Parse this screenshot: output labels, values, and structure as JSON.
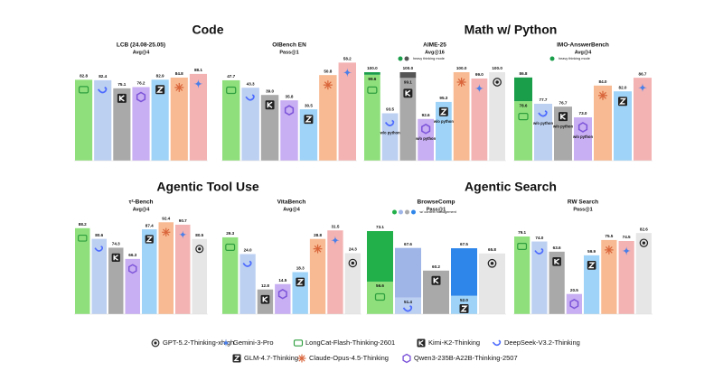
{
  "sections": [
    "Code",
    "Math w/ Python",
    "Agentic Tool Use",
    "Agentic Search"
  ],
  "legend": [
    {
      "name": "GPT-5.2-Thinking-xhigh",
      "color": "#e6e6e6"
    },
    {
      "name": "Gemini-3-Pro",
      "color": "#f4b3b3"
    },
    {
      "name": "LongCat-Flash-Thinking-2601",
      "color": "#8fe07c"
    },
    {
      "name": "Kimi-K2-Thinking",
      "color": "#a9a9a9"
    },
    {
      "name": "DeepSeek-V3.2-Thinking",
      "color": "#bcd0f2"
    },
    {
      "name": "GLM-4.7-Thinking",
      "color": "#9fd3f7"
    },
    {
      "name": "Claude-Opus-4.5-Thinking",
      "color": "#f8ba92"
    },
    {
      "name": "Qwen3-235B-A22B-Thinking-2507",
      "color": "#c8aef2"
    }
  ],
  "chart_data": [
    {
      "type": "bar",
      "title": "LCB (24.08-25.05)",
      "subtitle": "Avg@4",
      "categories": [
        "LongCat-Flash-Thinking-2601",
        "DeepSeek-V3.2-Thinking",
        "Kimi-K2-Thinking",
        "Qwen3-235B-A22B-Thinking-2507",
        "GLM-4.7-Thinking",
        "Claude-Opus-4.5-Thinking",
        "Gemini-3-Pro"
      ],
      "values": [
        82.8,
        82.4,
        75.1,
        76.2,
        82.9,
        84.8,
        88.1
      ],
      "value_labels": [
        "82.8",
        "82.4",
        "75.1",
        "76.2",
        "82.9",
        "84.8",
        "88.1"
      ],
      "ylim": [
        10,
        101
      ]
    },
    {
      "type": "bar",
      "title": "OIBench EN",
      "subtitle": "Pass@1",
      "categories": [
        "LongCat-Flash-Thinking-2601",
        "DeepSeek-V3.2-Thinking",
        "Kimi-K2-Thinking",
        "Qwen3-235B-A22B-Thinking-2507",
        "GLM-4.7-Thinking",
        "Claude-Opus-4.5-Thinking",
        "Gemini-3-Pro"
      ],
      "values": [
        47.7,
        43.3,
        39.0,
        35.8,
        30.5,
        50.8,
        58.2
      ],
      "value_labels": [
        "47.7",
        "43.3",
        "39.0",
        "35.8",
        "30.5",
        "50.8",
        "58.2"
      ],
      "ylim": [
        0,
        60
      ]
    },
    {
      "type": "bar",
      "title": "AIME-25",
      "subtitle": "Avg@16",
      "categories": [
        "LongCat-Flash-Thinking-2601",
        "DeepSeek-V3.2-Thinking",
        "Kimi-K2-Thinking",
        "Qwen3-235B-A22B-Thinking-2507",
        "GLM-4.7-Thinking",
        "Claude-Opus-4.5-Thinking",
        "Gemini-3-Pro",
        "GPT-5.2-Thinking-xhigh"
      ],
      "values": [
        99.6,
        93.5,
        99.1,
        92.6,
        95.3,
        100.0,
        99.0,
        100.0
      ],
      "value_labels": [
        "99.6",
        "93.5",
        "99.1",
        "92.6",
        "95.3",
        "100.0",
        "99.0",
        "100.0"
      ],
      "heavy_values": [
        100.0,
        null,
        100.0,
        null,
        null,
        null,
        null,
        null
      ],
      "heavy_value_labels": [
        "100.0",
        null,
        "100.0",
        null,
        null,
        null,
        null,
        null
      ],
      "heavy_colors": [
        "#1a9e4a",
        null,
        "#555555",
        null,
        null,
        null,
        null,
        null
      ],
      "notes": [
        null,
        "w/o python",
        null,
        "w/o python",
        "w/o python",
        null,
        null,
        null
      ],
      "legend_note": {
        "label": "heavy thinking mode",
        "colors": [
          "#1a9e4a",
          "#555555"
        ]
      },
      "ylim": [
        86,
        102
      ]
    },
    {
      "type": "bar",
      "title": "IMO-AnswerBench",
      "subtitle": "Avg@4",
      "categories": [
        "LongCat-Flash-Thinking-2601",
        "DeepSeek-V3.2-Thinking",
        "Kimi-K2-Thinking",
        "Qwen3-235B-A22B-Thinking-2507",
        "Claude-Opus-4.5-Thinking",
        "GLM-4.7-Thinking",
        "Gemini-3-Pro"
      ],
      "values": [
        78.6,
        77.7,
        76.7,
        73.0,
        84.0,
        82.0,
        86.7
      ],
      "value_labels": [
        "78.6",
        "77.7",
        "76.7",
        "73.0",
        "84.0",
        "82.0",
        "86.7"
      ],
      "heavy_values": [
        86.8,
        null,
        null,
        null,
        null,
        null,
        null
      ],
      "heavy_value_labels": [
        "86.8",
        null,
        null,
        null,
        null,
        null,
        null
      ],
      "heavy_colors": [
        "#1a9e4a",
        null,
        null,
        null,
        null,
        null,
        null
      ],
      "notes": [
        null,
        "w/o python",
        "w/o python",
        "w/o python",
        null,
        null,
        null
      ],
      "legend_note": {
        "label": "heavy thinking mode",
        "colors": [
          "#1a9e4a"
        ]
      },
      "ylim": [
        58,
        93
      ]
    },
    {
      "type": "bar",
      "title": "τ²-Bench",
      "subtitle": "Avg@4",
      "categories": [
        "LongCat-Flash-Thinking-2601",
        "DeepSeek-V3.2-Thinking",
        "Kimi-K2-Thinking",
        "Qwen3-235B-A22B-Thinking-2507",
        "GLM-4.7-Thinking",
        "Claude-Opus-4.5-Thinking",
        "Gemini-3-Pro",
        "GPT-5.2-Thinking-xhigh"
      ],
      "values": [
        88.2,
        80.6,
        74.3,
        66.3,
        87.4,
        92.4,
        90.7,
        80.5
      ],
      "value_labels": [
        "88.2",
        "80.6",
        "74.3",
        "66.3",
        "87.4",
        "92.4",
        "90.7",
        "80.5"
      ],
      "ylim": [
        27,
        99
      ]
    },
    {
      "type": "bar",
      "title": "VitaBench",
      "subtitle": "Avg@4",
      "categories": [
        "LongCat-Flash-Thinking-2601",
        "DeepSeek-V3.2-Thinking",
        "Kimi-K2-Thinking",
        "Qwen3-235B-A22B-Thinking-2507",
        "GLM-4.7-Thinking",
        "Claude-Opus-4.5-Thinking",
        "Gemini-3-Pro",
        "GPT-5.2-Thinking-xhigh"
      ],
      "values": [
        29.3,
        24.0,
        12.8,
        14.5,
        18.3,
        28.8,
        31.5,
        24.3
      ],
      "value_labels": [
        "29.3",
        "24.0",
        "12.8",
        "14.5",
        "18.3",
        "28.8",
        "31.5",
        "24.3"
      ],
      "ylim": [
        5,
        37
      ]
    },
    {
      "type": "bar",
      "title": "BrowseComp",
      "subtitle": "Pass@1",
      "categories": [
        "LongCat-Flash-Thinking-2601",
        "DeepSeek-V3.2-Thinking",
        "Kimi-K2-Thinking",
        "GLM-4.7-Thinking",
        "GPT-5.2-Thinking-xhigh"
      ],
      "values": [
        56.6,
        51.4,
        60.2,
        52.0,
        65.8
      ],
      "value_labels": [
        "56.6",
        "51.4",
        "60.2",
        "52.0",
        "65.8"
      ],
      "heavy_values": [
        73.1,
        67.6,
        null,
        67.5,
        null
      ],
      "heavy_value_labels": [
        "73.1",
        "67.6",
        null,
        "67.5",
        null
      ],
      "heavy_colors": [
        "#22b04a",
        "#9fb5e8",
        null,
        "#2f86ea",
        null
      ],
      "legend_note": {
        "label": "w/ context management",
        "colors": [
          "#22b04a",
          "#9fb5e8",
          "#aaaaaa",
          "#2f86ea"
        ]
      },
      "ylim": [
        46,
        79
      ]
    },
    {
      "type": "bar",
      "title": "RW Search",
      "subtitle": "Pass@1",
      "categories": [
        "LongCat-Flash-Thinking-2601",
        "DeepSeek-V3.2-Thinking",
        "Kimi-K2-Thinking",
        "Qwen3-235B-A22B-Thinking-2507",
        "GLM-4.7-Thinking",
        "Claude-Opus-4.5-Thinking",
        "Gemini-3-Pro",
        "GPT-5.2-Thinking-xhigh"
      ],
      "values": [
        79.1,
        74.0,
        63.6,
        20.5,
        59.9,
        75.5,
        74.5,
        82.6
      ],
      "value_labels": [
        "79.1",
        "74.0",
        "63.6",
        "20.5",
        "59.9",
        "75.5",
        "74.5",
        "82.6"
      ],
      "ylim": [
        0,
        103
      ]
    }
  ]
}
